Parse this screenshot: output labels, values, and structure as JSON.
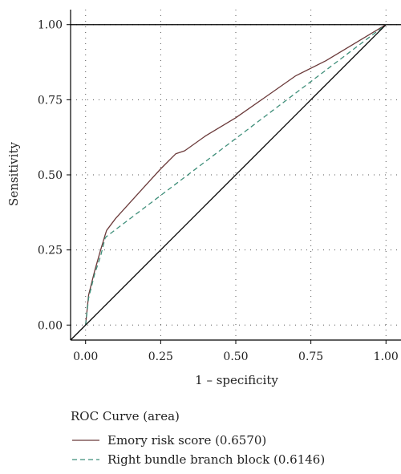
{
  "chart_data": {
    "type": "line",
    "xlabel": "1 – specificity",
    "ylabel": "Sensitivity",
    "xlim": [
      -0.05,
      1.05
    ],
    "ylim": [
      -0.05,
      1.05
    ],
    "x_ticks": [
      "0.00",
      "0.25",
      "0.50",
      "0.75",
      "1.00"
    ],
    "y_ticks": [
      "0.00",
      "0.25",
      "0.50",
      "0.75",
      "1.00"
    ],
    "grid": true,
    "legend_title": "ROC Curve (area)",
    "legend_position": "bottom",
    "series": [
      {
        "name": "Emory risk score (0.6570)",
        "line_style": "solid",
        "color": "#6b3a3a",
        "x": [
          0.0,
          0.01,
          0.03,
          0.05,
          0.065,
          0.07,
          0.1,
          0.15,
          0.2,
          0.25,
          0.3,
          0.33,
          0.4,
          0.5,
          0.6,
          0.7,
          0.8,
          0.9,
          1.0
        ],
        "y": [
          0.0,
          0.1,
          0.18,
          0.25,
          0.3,
          0.315,
          0.355,
          0.41,
          0.465,
          0.52,
          0.57,
          0.58,
          0.63,
          0.69,
          0.76,
          0.83,
          0.88,
          0.94,
          1.0
        ]
      },
      {
        "name": "Right bundle branch block (0.6146)",
        "line_style": "dashed",
        "color": "#3f8f7a",
        "x": [
          0.0,
          0.01,
          0.03,
          0.05,
          0.065,
          0.07,
          1.0
        ],
        "y": [
          0.0,
          0.09,
          0.17,
          0.23,
          0.29,
          0.295,
          1.0
        ]
      },
      {
        "name": "",
        "line_style": "solid",
        "color": "#000000",
        "x": [
          -0.05,
          1.0
        ],
        "y": [
          -0.05,
          1.0
        ]
      }
    ]
  }
}
